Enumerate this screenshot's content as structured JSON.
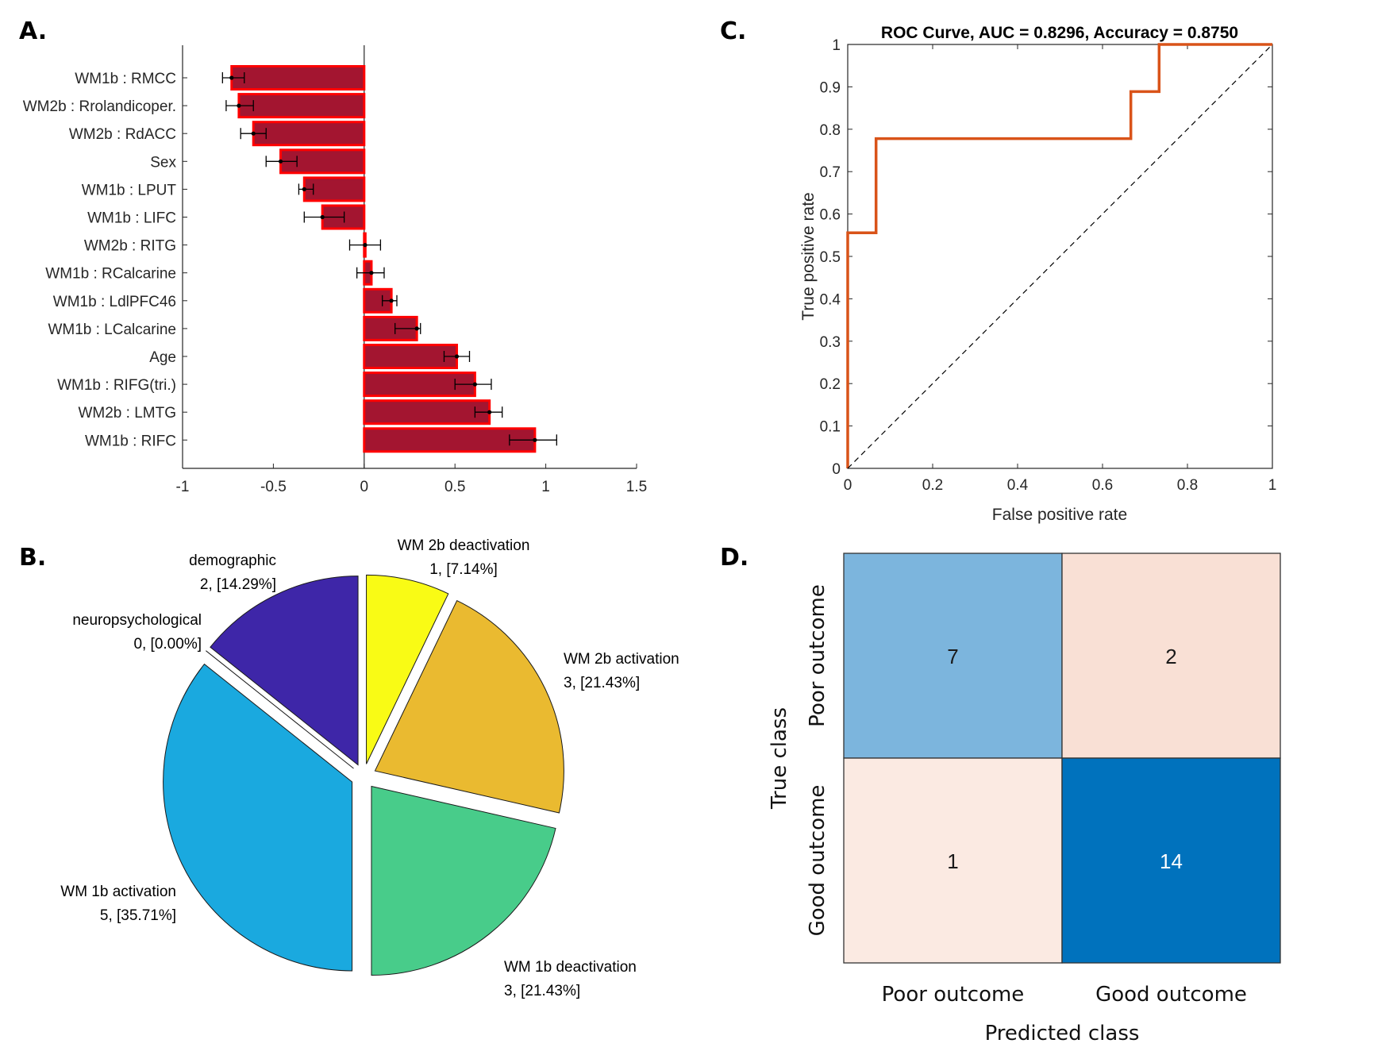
{
  "panels": {
    "a": "A.",
    "b": "B.",
    "c": "C.",
    "d": "D."
  },
  "chart_data": [
    {
      "panel": "A",
      "type": "bar",
      "orientation": "horizontal",
      "categories": [
        "WM1b : RMCC",
        "WM2b : Rrolandicoper.",
        "WM2b : RdACC",
        "Sex",
        "WM1b : LPUT",
        "WM1b : LIFC",
        "WM2b : RITG",
        "WM1b : RCalcarine",
        "WM1b : LdlPFC46",
        "WM1b : LCalcarine",
        "Age",
        "WM1b : RIFG(tri.)",
        "WM2b : LMTG",
        "WM1b : RIFC"
      ],
      "values": [
        -0.73,
        -0.69,
        -0.61,
        -0.46,
        -0.33,
        -0.23,
        0.005,
        0.04,
        0.15,
        0.29,
        0.51,
        0.61,
        0.69,
        0.94
      ],
      "error_low": [
        -0.78,
        -0.76,
        -0.68,
        -0.54,
        -0.36,
        -0.33,
        -0.08,
        -0.04,
        0.1,
        0.17,
        0.44,
        0.5,
        0.61,
        0.8
      ],
      "error_high": [
        -0.66,
        -0.61,
        -0.54,
        -0.37,
        -0.28,
        -0.11,
        0.09,
        0.11,
        0.18,
        0.31,
        0.58,
        0.7,
        0.76,
        1.06
      ],
      "xlim": [
        -1,
        1.5
      ],
      "xticks": [
        "-1",
        "-0.5",
        "0",
        "0.5",
        "1",
        "1.5"
      ],
      "xtick_values": [
        -1,
        -0.5,
        0,
        0.5,
        1,
        1.5
      ],
      "title": "",
      "xlabel": "",
      "ylabel": "",
      "bar_color": "#A31530",
      "bar_edge_color": "#FF0000"
    },
    {
      "panel": "B",
      "type": "pie",
      "slices": [
        {
          "label": "WM 2b deactivation",
          "count": 1,
          "percent": "1, [7.14%]",
          "value": 7.14,
          "color": "#F9FB15"
        },
        {
          "label": "WM 2b activation",
          "count": 3,
          "percent": "3, [21.43%]",
          "value": 21.43,
          "color": "#EABA30"
        },
        {
          "label": "WM 1b deactivation",
          "count": 3,
          "percent": "3, [21.43%]",
          "value": 21.43,
          "color": "#48CC8A"
        },
        {
          "label": "WM 1b activation",
          "count": 5,
          "percent": "5, [35.71%]",
          "value": 35.71,
          "color": "#1AA9DF"
        },
        {
          "label": "neuropsychological",
          "count": 0,
          "percent": "0, [0.00%]",
          "value": 0,
          "color": "#2C98C8"
        },
        {
          "label": "demographic",
          "count": 2,
          "percent": "2, [14.29%]",
          "value": 14.29,
          "color": "#3E26A8"
        }
      ],
      "exploded": true
    },
    {
      "panel": "C",
      "type": "line",
      "title": "ROC Curve, AUC = 0.8296, Accuracy = 0.8750",
      "xlabel": "False positive rate",
      "ylabel": "True positive rate",
      "xlim": [
        0,
        1
      ],
      "ylim": [
        0,
        1
      ],
      "xticks": [
        "0",
        "0.2",
        "0.4",
        "0.6",
        "0.8",
        "1"
      ],
      "xtick_values": [
        0,
        0.2,
        0.4,
        0.6,
        0.8,
        1
      ],
      "yticks": [
        "0",
        "0.1",
        "0.2",
        "0.3",
        "0.4",
        "0.5",
        "0.6",
        "0.7",
        "0.8",
        "0.9",
        "1"
      ],
      "ytick_values": [
        0,
        0.1,
        0.2,
        0.3,
        0.4,
        0.5,
        0.6,
        0.7,
        0.8,
        0.9,
        1
      ],
      "series": [
        {
          "name": "ROC",
          "color": "#D95319",
          "x": [
            0,
            0,
            0.0667,
            0.0667,
            0.6667,
            0.6667,
            0.7333,
            0.7333,
            1
          ],
          "y": [
            0,
            0.5556,
            0.5556,
            0.7778,
            0.7778,
            0.8889,
            0.8889,
            1,
            1
          ]
        },
        {
          "name": "chance",
          "color": "#000000",
          "style": "dashed",
          "x": [
            0,
            1
          ],
          "y": [
            0,
            1
          ]
        }
      ]
    },
    {
      "panel": "D",
      "type": "heatmap",
      "xlabel": "Predicted class",
      "ylabel": "True class",
      "x_categories": [
        "Poor outcome",
        "Good outcome"
      ],
      "y_categories": [
        "Poor outcome",
        "Good outcome"
      ],
      "values": [
        [
          7,
          2
        ],
        [
          1,
          14
        ]
      ],
      "colors": [
        [
          "#7CB5DD",
          "#F9E0D5"
        ],
        [
          "#FBEAE2",
          "#0072BD"
        ]
      ],
      "text_colors": [
        [
          "#1a1a1a",
          "#1a1a1a"
        ],
        [
          "#1a1a1a",
          "#ffffff"
        ]
      ]
    }
  ]
}
